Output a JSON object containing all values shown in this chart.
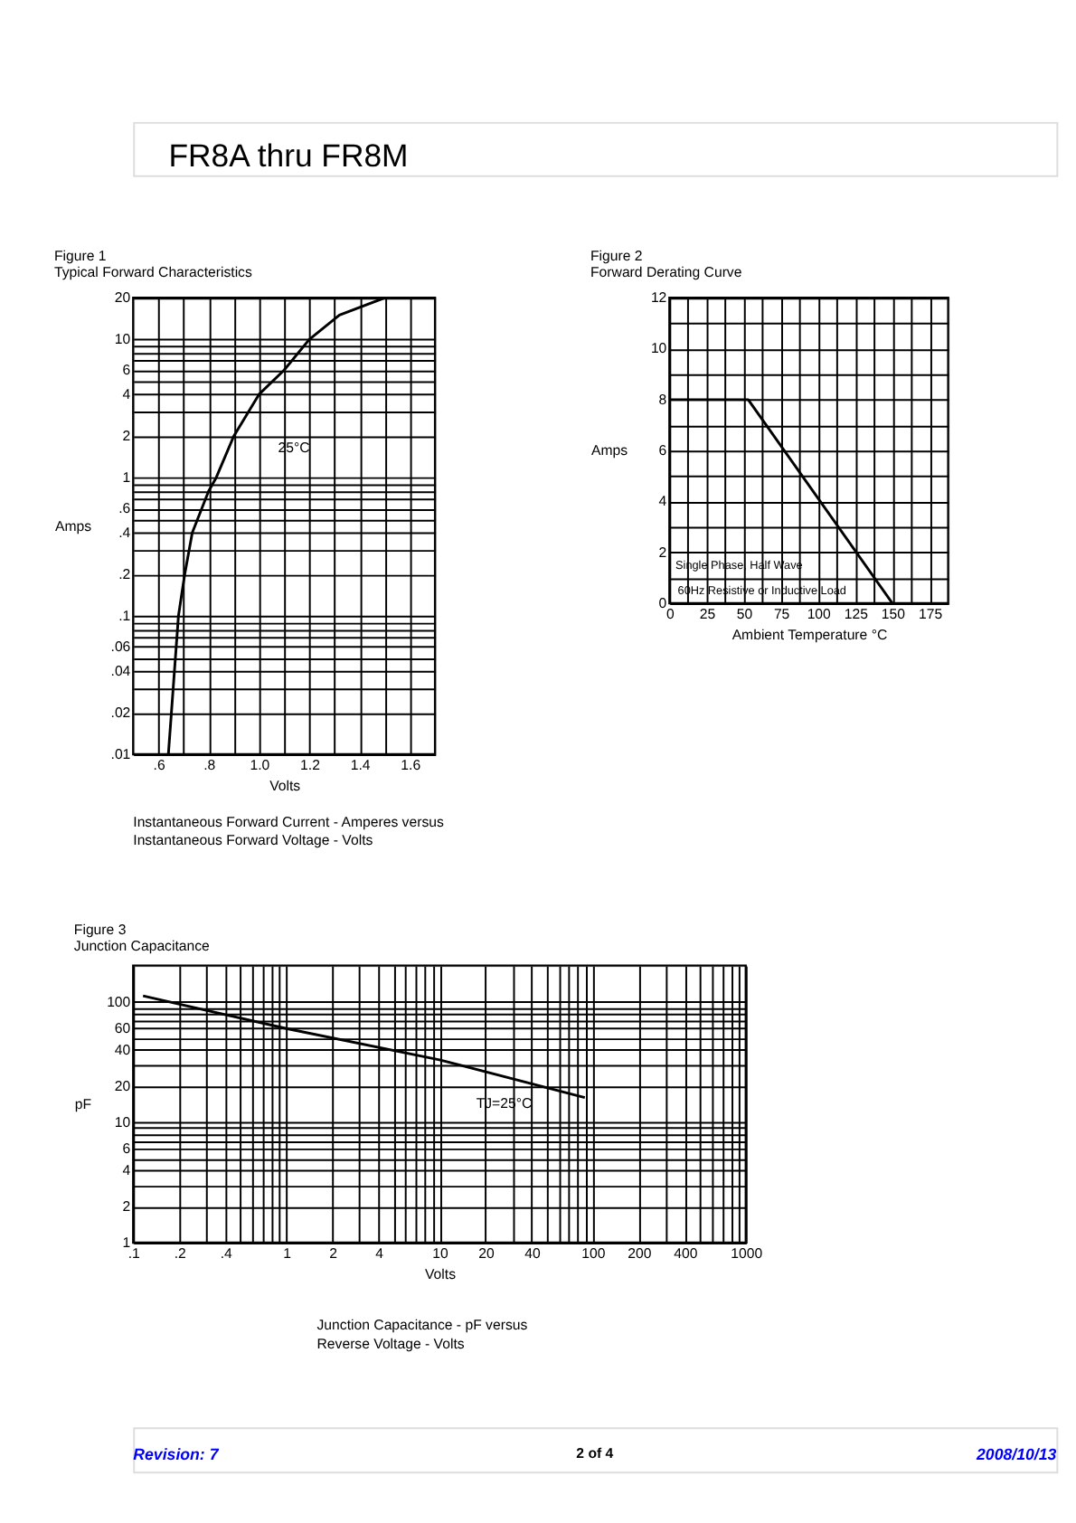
{
  "chart_data": [
    {
      "type": "other",
      "title": "FR8A thru FR8M"
    },
    {
      "type": "line",
      "title": "Figure 1",
      "subtitle": "Typical Forward Characteristics",
      "xlabel": "Volts",
      "ylabel": "Amps",
      "log": "y",
      "grid": true,
      "xlim": [
        0.5,
        1.7
      ],
      "xticks": [
        {
          "value": 0.6,
          "label": ".6"
        },
        {
          "value": 0.7,
          "label": null
        },
        {
          "value": 0.8,
          "label": ".8"
        },
        {
          "value": 0.9,
          "label": null
        },
        {
          "value": 1.0,
          "label": "1.0"
        },
        {
          "value": 1.1,
          "label": null
        },
        {
          "value": 1.2,
          "label": "1.2"
        },
        {
          "value": 1.3,
          "label": null
        },
        {
          "value": 1.4,
          "label": "1.4"
        },
        {
          "value": 1.5,
          "label": null
        },
        {
          "value": 1.6,
          "label": "1.6"
        }
      ],
      "ylim": [
        0.01,
        20
      ],
      "yticks": [
        {
          "value": 0.01,
          "label": ".01"
        },
        {
          "value": 0.02,
          "label": ".02"
        },
        {
          "value": 0.03,
          "label": null
        },
        {
          "value": 0.04,
          "label": ".04"
        },
        {
          "value": 0.05,
          "label": null
        },
        {
          "value": 0.06,
          "label": ".06"
        },
        {
          "value": 0.07,
          "label": null
        },
        {
          "value": 0.08,
          "label": null
        },
        {
          "value": 0.09,
          "label": null
        },
        {
          "value": 0.1,
          "label": ".1"
        },
        {
          "value": 0.2,
          "label": ".2"
        },
        {
          "value": 0.3,
          "label": null
        },
        {
          "value": 0.4,
          "label": ".4"
        },
        {
          "value": 0.5,
          "label": null
        },
        {
          "value": 0.6,
          "label": ".6"
        },
        {
          "value": 0.7,
          "label": null
        },
        {
          "value": 0.8,
          "label": null
        },
        {
          "value": 0.9,
          "label": null
        },
        1,
        2,
        {
          "value": 3,
          "label": null
        },
        4,
        {
          "value": 5,
          "label": null
        },
        6,
        {
          "value": 7,
          "label": null
        },
        {
          "value": 8,
          "label": null
        },
        {
          "value": 9,
          "label": null
        },
        10,
        20
      ],
      "x": [
        0.64,
        0.68,
        0.705,
        0.735,
        0.8,
        0.83,
        0.9,
        1.0,
        1.1,
        1.2,
        1.32,
        1.5
      ],
      "series": [
        {
          "color": "#000000",
          "values": [
            0.01,
            0.1,
            0.2,
            0.4,
            0.8,
            1,
            2,
            4,
            6,
            10,
            15,
            20
          ]
        }
      ],
      "annotations": [
        "25°C",
        "Instantaneous Forward Current - Amperes versus",
        "Instantaneous Forward Voltage - Volts"
      ]
    },
    {
      "type": "line",
      "title": "Figure 2",
      "subtitle": "Forward Derating Curve",
      "xlabel": "Ambient Temperature °C",
      "ylabel": "Amps",
      "grid": true,
      "xlim": [
        0,
        187.5
      ],
      "xticks": [
        0,
        {
          "value": 12.5,
          "label": null
        },
        25,
        {
          "value": 37.5,
          "label": null
        },
        50,
        {
          "value": 62.5,
          "label": null
        },
        75,
        {
          "value": 87.5,
          "label": null
        },
        100,
        {
          "value": 112.5,
          "label": null
        },
        125,
        {
          "value": 137.5,
          "label": null
        },
        150,
        {
          "value": 162.5,
          "label": null
        },
        175
      ],
      "ylim": [
        0,
        12
      ],
      "yticks": [
        0,
        {
          "value": 1,
          "label": null
        },
        2,
        {
          "value": 3,
          "label": null
        },
        4,
        {
          "value": 5,
          "label": null
        },
        6,
        {
          "value": 7,
          "label": null
        },
        8,
        {
          "value": 9,
          "label": null
        },
        10,
        {
          "value": 11,
          "label": null
        },
        12
      ],
      "x": [
        0,
        53,
        150
      ],
      "series": [
        {
          "color": "#000000",
          "values": [
            8,
            8,
            0
          ]
        }
      ],
      "annotations": [
        "Single Phase, Half Wave",
        "60Hz Resistive or Inductive Load"
      ]
    },
    {
      "type": "line",
      "title": "Figure 3",
      "subtitle": "Junction Capacitance",
      "xlabel": "Volts",
      "ylabel": "pF",
      "log": "xy",
      "grid": true,
      "xlim": [
        0.1,
        1000
      ],
      "xticks": [
        {
          "value": 0.1,
          "label": ".1"
        },
        {
          "value": 0.2,
          "label": ".2"
        },
        {
          "value": 0.3,
          "label": null
        },
        {
          "value": 0.4,
          "label": ".4"
        },
        {
          "value": 0.5,
          "label": null
        },
        {
          "value": 0.6,
          "label": null
        },
        {
          "value": 0.7,
          "label": null
        },
        {
          "value": 0.8,
          "label": null
        },
        {
          "value": 0.9,
          "label": null
        },
        1,
        2,
        {
          "value": 3,
          "label": null
        },
        4,
        {
          "value": 5,
          "label": null
        },
        {
          "value": 6,
          "label": null
        },
        {
          "value": 7,
          "label": null
        },
        {
          "value": 8,
          "label": null
        },
        {
          "value": 9,
          "label": null
        },
        10,
        20,
        {
          "value": 30,
          "label": null
        },
        40,
        {
          "value": 50,
          "label": null
        },
        {
          "value": 60,
          "label": null
        },
        {
          "value": 70,
          "label": null
        },
        {
          "value": 80,
          "label": null
        },
        {
          "value": 90,
          "label": null
        },
        100,
        200,
        {
          "value": 300,
          "label": null
        },
        400,
        {
          "value": 500,
          "label": null
        },
        {
          "value": 600,
          "label": null
        },
        {
          "value": 700,
          "label": null
        },
        {
          "value": 800,
          "label": null
        },
        {
          "value": 900,
          "label": null
        },
        1000
      ],
      "ylim": [
        1,
        200
      ],
      "yticks": [
        1,
        2,
        {
          "value": 3,
          "label": null
        },
        4,
        {
          "value": 5,
          "label": null
        },
        6,
        {
          "value": 7,
          "label": null
        },
        {
          "value": 8,
          "label": null
        },
        {
          "value": 9,
          "label": null
        },
        10,
        20,
        {
          "value": 30,
          "label": null
        },
        40,
        {
          "value": 50,
          "label": null
        },
        60,
        {
          "value": 70,
          "label": null
        },
        {
          "value": 80,
          "label": null
        },
        {
          "value": 90,
          "label": null
        },
        100
      ],
      "x": [
        0.116,
        1,
        10,
        89
      ],
      "series": [
        {
          "color": "#000000",
          "values": [
            112,
            60,
            33,
            16
          ]
        }
      ],
      "annotations": [
        "TJ=25°C",
        "Junction Capacitance - pF versus",
        "Reverse Voltage - Volts"
      ]
    },
    {
      "type": "other",
      "annotations": [
        "Revision: 7",
        "2 of 4",
        "2008/10/13"
      ]
    }
  ]
}
